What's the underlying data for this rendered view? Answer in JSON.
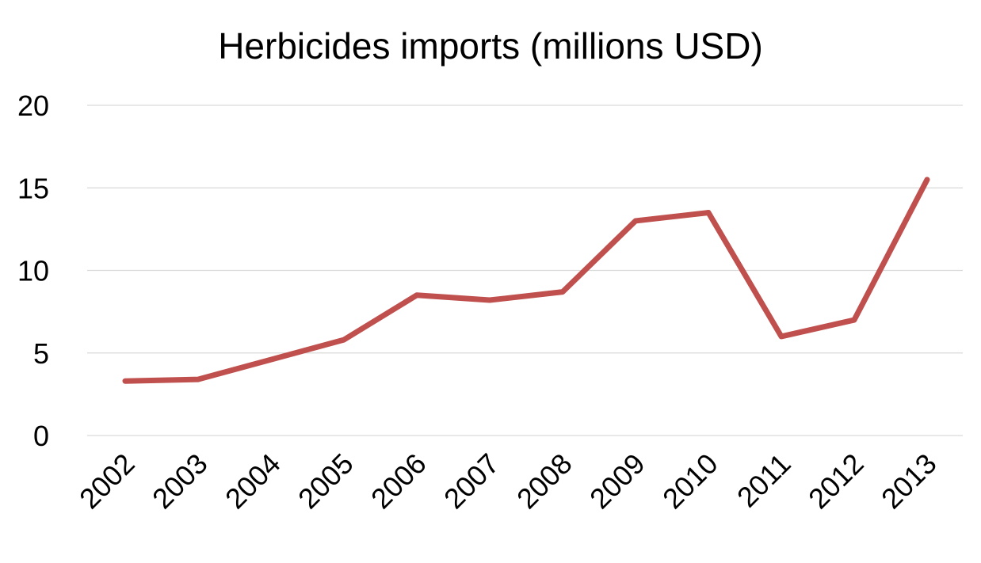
{
  "chart_data": {
    "type": "line",
    "title": "Herbicides imports (millions USD)",
    "xlabel": "",
    "ylabel": "",
    "categories": [
      "2002",
      "2003",
      "2004",
      "2005",
      "2006",
      "2007",
      "2008",
      "2009",
      "2010",
      "2011",
      "2012",
      "2013"
    ],
    "series": [
      {
        "values": [
          3.3,
          3.4,
          4.6,
          5.8,
          8.5,
          8.2,
          8.7,
          13.0,
          13.5,
          6.0,
          7.0,
          15.5
        ],
        "color": "#c0504d"
      }
    ],
    "ylim": [
      0,
      20
    ],
    "yticks": [
      0,
      5,
      10,
      15,
      20
    ],
    "grid": true,
    "legend": "none"
  }
}
